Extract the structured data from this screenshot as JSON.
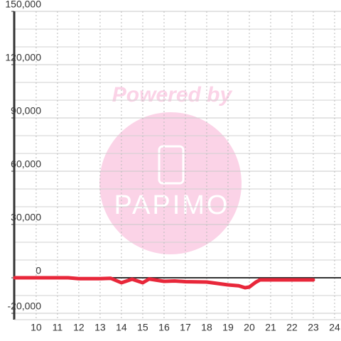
{
  "chart_data": {
    "type": "line",
    "watermark": {
      "text": "Powered by",
      "logo": "PAPIMO"
    },
    "x": [
      9,
      10,
      11,
      11.5,
      12,
      13,
      13.5,
      14,
      14.5,
      15,
      15.3,
      16,
      16.5,
      17,
      18,
      18.5,
      19,
      19.5,
      19.8,
      20,
      20.3,
      20.5,
      21,
      22,
      23
    ],
    "series": [
      {
        "color": "#e8273a",
        "values": [
          0,
          0,
          0,
          0,
          -500,
          -500,
          -300,
          -2800,
          -800,
          -2800,
          -700,
          -2000,
          -1800,
          -2200,
          -2400,
          -3200,
          -4000,
          -4500,
          -5600,
          -5200,
          -2500,
          -1200,
          -1200,
          -1200,
          -1200
        ]
      }
    ],
    "xlim": [
      8.97,
      24.3
    ],
    "xticks": [
      10,
      11,
      12,
      13,
      14,
      15,
      16,
      17,
      18,
      19,
      20,
      21,
      22,
      23,
      24
    ],
    "ylim": [
      -20000,
      150000
    ],
    "yticks": [
      {
        "value": -20000,
        "label": "-20,000"
      },
      0,
      {
        "value": 30000,
        "label": "30,000"
      },
      {
        "value": 60000,
        "label": "60,000"
      },
      {
        "value": 90000,
        "label": "90,000"
      },
      {
        "value": 120000,
        "label": "120,000"
      },
      {
        "value": 150000,
        "label": "150,000"
      }
    ],
    "yminor": [
      -10000,
      10000,
      20000,
      40000,
      50000,
      70000,
      80000,
      100000,
      110000,
      130000,
      140000
    ],
    "grid": true
  }
}
